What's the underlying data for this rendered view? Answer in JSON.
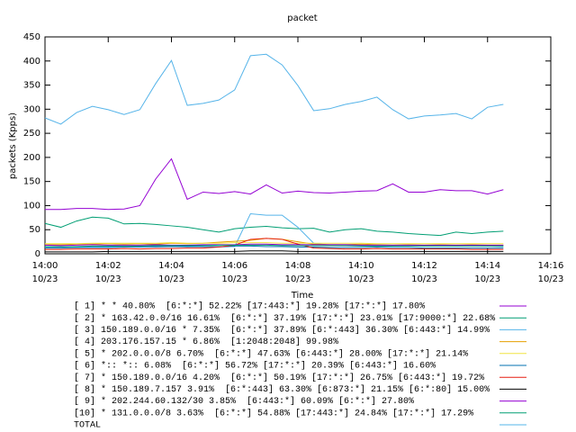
{
  "chart_data": {
    "type": "line",
    "title": "packet",
    "ylabel": "packets (Kpps)",
    "xlabel": "Time",
    "xlim": [
      0,
      16
    ],
    "xticks": [
      {
        "value": 0,
        "label": "14:00\n10/23"
      },
      {
        "value": 2,
        "label": "14:02\n10/23"
      },
      {
        "value": 4,
        "label": "14:04\n10/23"
      },
      {
        "value": 6,
        "label": "14:06\n10/23"
      },
      {
        "value": 8,
        "label": "14:08\n10/23"
      },
      {
        "value": 10,
        "label": "14:10\n10/23"
      },
      {
        "value": 12,
        "label": "14:12\n10/23"
      },
      {
        "value": 14,
        "label": "14:14\n10/23"
      },
      {
        "value": 16,
        "label": "14:16\n10/23"
      }
    ],
    "ylim": [
      0,
      450
    ],
    "yticks": [
      0,
      50,
      100,
      150,
      200,
      250,
      300,
      350,
      400,
      450
    ],
    "grid": false,
    "x": [
      0,
      0.5,
      1,
      1.5,
      2,
      2.5,
      3,
      3.5,
      4,
      4.5,
      5,
      5.5,
      6,
      6.5,
      7,
      7.5,
      8,
      8.5,
      9,
      9.5,
      10,
      10.5,
      11,
      11.5,
      12,
      12.5,
      13,
      13.5,
      14,
      14.5
    ],
    "series": [
      {
        "name": "[ 1] * * 40.80%  [6:*:*] 52.22% [17:443:*] 19.28% [17:*:*] 17.80%",
        "color": "#9400d3",
        "values": [
          92,
          92,
          94,
          94,
          92,
          93,
          100,
          155,
          197,
          113,
          128,
          125,
          129,
          124,
          143,
          126,
          130,
          127,
          126,
          128,
          130,
          131,
          145,
          128,
          128,
          133,
          131,
          131,
          124,
          133
        ]
      },
      {
        "name": "[ 2] * 163.42.0.0/16 16.61%  [6:*:*] 37.19% [17:*:*] 23.01% [17:9000:*] 22.68%",
        "color": "#009e73",
        "values": [
          63,
          55,
          68,
          76,
          74,
          62,
          63,
          61,
          58,
          55,
          50,
          45,
          52,
          55,
          57,
          54,
          52,
          53,
          45,
          50,
          52,
          47,
          45,
          42,
          40,
          38,
          45,
          42,
          45,
          47
        ]
      },
      {
        "name": "[ 3] 150.189.0.0/16 * 7.35%  [6:*:*] 37.89% [6:*:443] 36.30% [6:443:*] 14.99%",
        "color": "#56b4e9",
        "values": [
          14,
          14,
          15,
          14,
          15,
          14,
          15,
          14,
          15,
          14,
          15,
          14,
          15,
          83,
          80,
          80,
          55,
          22,
          18,
          17,
          18,
          17,
          16,
          17,
          16,
          17,
          16,
          17,
          16,
          15
        ]
      },
      {
        "name": "[ 4] 203.176.157.15 * 6.86%  [1:2048:2048] 99.98%",
        "color": "#e69f00",
        "values": [
          19,
          19,
          20,
          20,
          21,
          20,
          21,
          20,
          22,
          21,
          22,
          24,
          26,
          28,
          32,
          30,
          25,
          20,
          19,
          19,
          20,
          19,
          18,
          19,
          18,
          19,
          18,
          19,
          18,
          18
        ]
      },
      {
        "name": "[ 5] * 202.0.0.0/8 6.70%  [6:*:*] 47.63% [6:443:*] 28.00% [17:*:*] 21.14%",
        "color": "#f0e442",
        "values": [
          21,
          21,
          21,
          22,
          22,
          22,
          22,
          22,
          23,
          22,
          22,
          22,
          23,
          23,
          23,
          22,
          22,
          22,
          22,
          22,
          22,
          21,
          21,
          21,
          21,
          21,
          21,
          21,
          21,
          21
        ]
      },
      {
        "name": "[ 6] *:: *:: 6.08%  [6:*:*] 56.72% [17:*:*] 20.39% [6:443:*] 16.60%",
        "color": "#0072b2",
        "values": [
          12,
          12,
          13,
          13,
          13,
          14,
          14,
          15,
          15,
          16,
          15,
          15,
          16,
          16,
          15,
          15,
          14,
          14,
          13,
          13,
          13,
          14,
          13,
          13,
          12,
          12,
          12,
          12,
          12,
          12
        ]
      },
      {
        "name": "[ 7] * 150.189.0.0/16 4.20%  [6:*:*] 50.19% [17:*:*] 26.75% [6:443:*] 19.72%",
        "color": "#e51e10",
        "values": [
          9,
          9,
          10,
          10,
          10,
          11,
          10,
          11,
          11,
          12,
          12,
          14,
          18,
          30,
          32,
          30,
          20,
          12,
          11,
          10,
          10,
          11,
          10,
          10,
          10,
          10,
          10,
          9,
          9,
          9
        ]
      },
      {
        "name": "[ 8] * 150.189.7.157 3.91%  [6:*:443] 63.30% [6:873:*] 21.15% [6:*:80] 15.00%",
        "color": "#000000",
        "values": [
          4,
          4,
          4,
          4,
          5,
          5,
          5,
          5,
          5,
          5,
          5,
          5,
          5,
          6,
          6,
          6,
          5,
          5,
          5,
          5,
          5,
          5,
          5,
          5,
          5,
          5,
          5,
          5,
          5,
          5
        ]
      },
      {
        "name": "[ 9] * 202.244.60.132/30 3.85%  [6:443:*] 60.09% [6:*:*] 27.80%",
        "color": "#9400d3",
        "values": [
          18,
          17,
          18,
          19,
          18,
          18,
          18,
          19,
          18,
          18,
          19,
          19,
          19,
          20,
          20,
          19,
          19,
          19,
          19,
          19,
          18,
          18,
          18,
          18,
          18,
          18,
          18,
          18,
          18,
          18
        ]
      },
      {
        "name": "[10] * 131.0.0.0/8 3.63%  [6:*:*] 54.88% [17:443:*] 24.84% [17:*:*] 17.29%",
        "color": "#009e73",
        "values": [
          15,
          15,
          15,
          16,
          16,
          16,
          16,
          17,
          17,
          17,
          17,
          18,
          18,
          18,
          18,
          17,
          17,
          17,
          17,
          17,
          16,
          16,
          16,
          16,
          16,
          16,
          16,
          16,
          16,
          16
        ]
      },
      {
        "name": "TOTAL",
        "color": "#56b4e9",
        "values": [
          282,
          269,
          293,
          306,
          299,
          289,
          299,
          353,
          401,
          308,
          312,
          319,
          340,
          411,
          414,
          392,
          349,
          297,
          301,
          310,
          316,
          325,
          299,
          280,
          286,
          288,
          291,
          280,
          304,
          310
        ]
      }
    ]
  }
}
